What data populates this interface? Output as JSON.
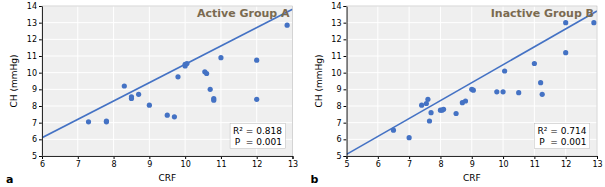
{
  "chart_data": [
    {
      "type": "scatter",
      "title": "Active Group A",
      "xlabel": "CRF",
      "ylabel": "CH (mmHg)",
      "xlim": [
        6,
        13
      ],
      "ylim": [
        5,
        14
      ],
      "xticks": [
        6,
        7,
        8,
        9,
        10,
        11,
        12,
        13
      ],
      "yticks": [
        5,
        6,
        7,
        8,
        9,
        10,
        11,
        12,
        13,
        14
      ],
      "grid": true,
      "series": [
        {
          "type": "scatter",
          "color": "#4472c4",
          "x": [
            7.3,
            7.8,
            7.8,
            8.3,
            8.5,
            8.5,
            8.7,
            9.0,
            9.5,
            9.7,
            9.8,
            10.0,
            10.0,
            10.05,
            10.55,
            10.6,
            10.7,
            10.8,
            10.8,
            11.0,
            12.0,
            12.0,
            12.85
          ],
          "values": [
            7.05,
            7.05,
            7.1,
            9.2,
            8.45,
            8.55,
            8.7,
            8.05,
            7.45,
            7.35,
            9.75,
            10.4,
            10.5,
            10.55,
            10.05,
            9.95,
            9.0,
            8.45,
            8.35,
            10.9,
            10.75,
            8.4,
            12.85
          ]
        },
        {
          "type": "line",
          "color": "#4472c4",
          "x": [
            6,
            13
          ],
          "values": [
            6.1,
            13.8
          ]
        }
      ],
      "annotations": [
        "R² = 0.818",
        "P  = 0.001"
      ],
      "panel_label": "a"
    },
    {
      "type": "scatter",
      "title": "Inactive Group B",
      "xlabel": "CRF",
      "ylabel": "CH  (mmHg)",
      "xlim": [
        5,
        13
      ],
      "ylim": [
        5,
        14
      ],
      "xticks": [
        5,
        6,
        7,
        8,
        9,
        10,
        11,
        12,
        13
      ],
      "yticks": [
        5,
        6,
        7,
        8,
        9,
        10,
        11,
        12,
        13,
        14
      ],
      "grid": true,
      "series": [
        {
          "type": "scatter",
          "color": "#4472c4",
          "x": [
            6.5,
            7.0,
            7.4,
            7.55,
            7.6,
            7.65,
            7.7,
            8.0,
            8.05,
            8.1,
            8.5,
            8.7,
            8.8,
            9.0,
            9.05,
            9.8,
            10.0,
            10.05,
            10.5,
            11.0,
            11.2,
            11.25,
            12.0,
            12.0,
            12.9
          ],
          "values": [
            6.55,
            6.1,
            8.05,
            8.15,
            8.4,
            7.1,
            7.6,
            7.75,
            7.75,
            7.8,
            7.55,
            8.2,
            8.3,
            9.0,
            8.95,
            8.85,
            8.85,
            10.1,
            8.8,
            10.55,
            9.4,
            8.7,
            11.2,
            13.0,
            13.0
          ]
        },
        {
          "type": "line",
          "color": "#4472c4",
          "x": [
            5,
            13
          ],
          "values": [
            5.1,
            13.7
          ]
        }
      ],
      "annotations": [
        "R² = 0.714",
        "P  = 0.001"
      ],
      "panel_label": "b"
    }
  ]
}
